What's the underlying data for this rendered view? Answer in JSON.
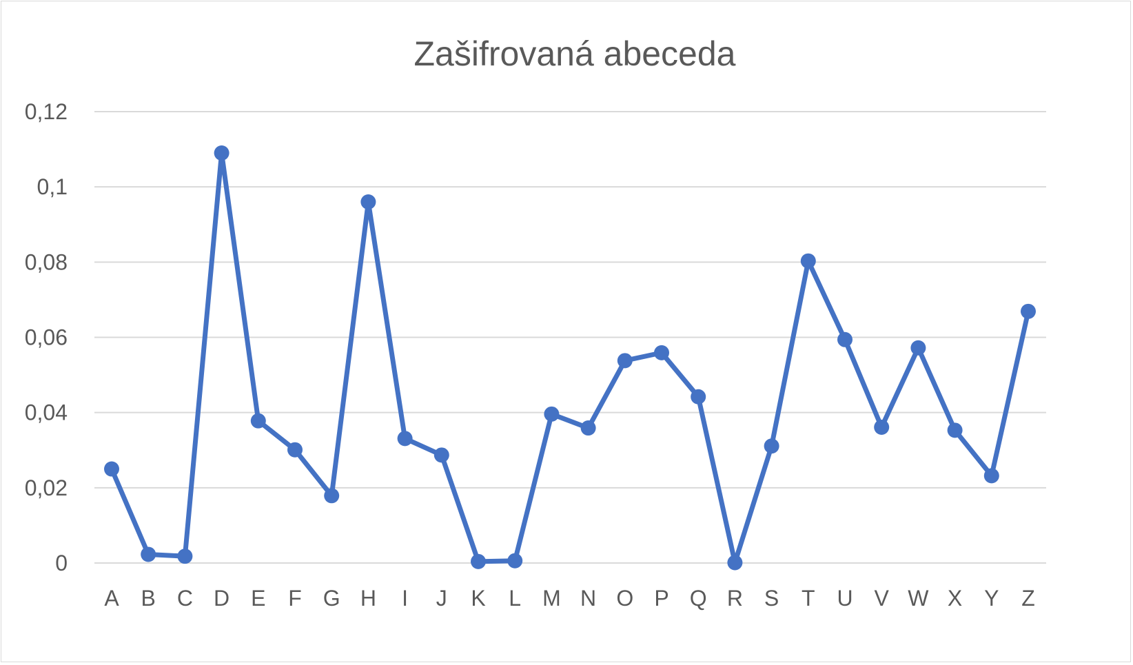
{
  "chart_data": {
    "type": "line",
    "title": "Zašifrovaná abeceda",
    "xlabel": "",
    "ylabel": "",
    "categories": [
      "A",
      "B",
      "C",
      "D",
      "E",
      "F",
      "G",
      "H",
      "I",
      "J",
      "K",
      "L",
      "M",
      "N",
      "O",
      "P",
      "Q",
      "R",
      "S",
      "T",
      "U",
      "V",
      "W",
      "X",
      "Y",
      "Z"
    ],
    "series": [
      {
        "values": [
          0.025,
          0.0023,
          0.0018,
          0.109,
          0.0378,
          0.0301,
          0.0179,
          0.096,
          0.0331,
          0.0287,
          0.0004,
          0.0006,
          0.0396,
          0.0359,
          0.0538,
          0.0559,
          0.0442,
          0.0001,
          0.0311,
          0.0803,
          0.0594,
          0.0361,
          0.0572,
          0.0353,
          0.0232,
          0.0669
        ]
      }
    ],
    "ylim": [
      0,
      0.12
    ],
    "yticks": [
      "0",
      "0,02",
      "0,04",
      "0,06",
      "0,08",
      "0,1",
      "0,12"
    ],
    "grid": true,
    "legend": "none",
    "colors": {
      "series": "#4472c4",
      "grid": "#d9d9d9",
      "text": "#595959"
    }
  }
}
